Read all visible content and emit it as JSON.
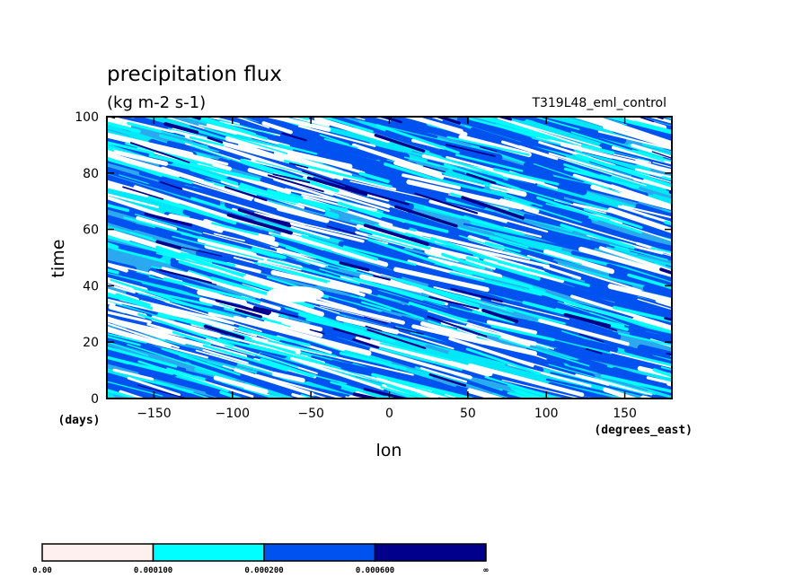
{
  "chart_data": {
    "type": "heatmap",
    "title": "precipitation flux",
    "subtitle": "(kg m-2 s-1)",
    "experiment_label": "T319L48_eml_control",
    "xlabel": "lon",
    "x_units": "(degrees_east)",
    "ylabel": "time",
    "y_units": "(days)",
    "xlim": [
      -180,
      180
    ],
    "ylim": [
      0,
      100
    ],
    "x_ticks": [
      -150,
      -100,
      -50,
      0,
      50,
      100,
      150
    ],
    "y_ticks": [
      0,
      20,
      40,
      60,
      80,
      100
    ],
    "x_tick_labels": [
      "−150",
      "−100",
      "−50",
      "0",
      "50",
      "100",
      "150"
    ],
    "y_tick_labels": [
      "0",
      "20",
      "40",
      "60",
      "80",
      "100"
    ],
    "grid": false,
    "colorbar": {
      "position": "bottom",
      "levels": [
        0.0,
        0.0001,
        0.0002,
        0.0006
      ],
      "tick_labels": [
        "0.00",
        "0.000100",
        "0.000200",
        "0.000600",
        "∞"
      ],
      "colors": [
        "#fff0f0",
        "#00ffff",
        "#0052f0",
        "#00008c"
      ]
    }
  }
}
